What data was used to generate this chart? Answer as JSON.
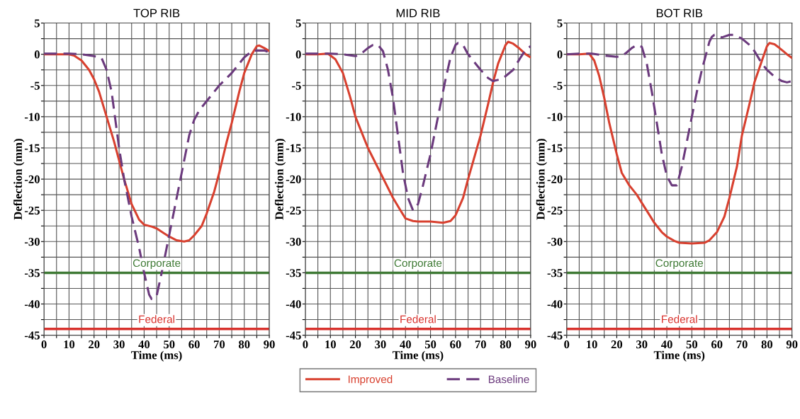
{
  "chart_data": [
    {
      "type": "line",
      "title": "TOP RIB",
      "xlabel": "Time (ms)",
      "ylabel": "Deflection (mm)",
      "xlim": [
        0,
        90
      ],
      "ylim": [
        -45,
        5
      ],
      "xticks": [
        0,
        {
          "value": 5,
          "label": null
        },
        10,
        {
          "value": 15,
          "label": null
        },
        20,
        {
          "value": 25,
          "label": null
        },
        30,
        {
          "value": 35,
          "label": null
        },
        40,
        {
          "value": 45,
          "label": null
        },
        50,
        {
          "value": 55,
          "label": null
        },
        60,
        {
          "value": 65,
          "label": null
        },
        70,
        {
          "value": 75,
          "label": null
        },
        80,
        {
          "value": 85,
          "label": null
        },
        90
      ],
      "yticks": [
        -45,
        {
          "value": -42.5,
          "label": null
        },
        -40,
        {
          "value": -37.5,
          "label": null
        },
        -35,
        {
          "value": -32.5,
          "label": null
        },
        -30,
        {
          "value": -27.5,
          "label": null
        },
        -25,
        {
          "value": -22.5,
          "label": null
        },
        -20,
        {
          "value": -17.5,
          "label": null
        },
        -15,
        {
          "value": -12.5,
          "label": null
        },
        -10,
        {
          "value": -7.5,
          "label": null
        },
        -5,
        {
          "value": -2.5,
          "label": null
        },
        0,
        {
          "value": 2.5,
          "label": null
        },
        5
      ],
      "grid": true,
      "marker": "none",
      "ref_lines": [
        {
          "axis": "y",
          "value": -35,
          "label": "Corporate",
          "color": "#3f7a35"
        },
        {
          "axis": "y",
          "value": -44,
          "label": "Federal",
          "color": "#d8322d"
        }
      ],
      "series": [
        {
          "color": "#d8402f",
          "line_style": "solid",
          "x": [
            0,
            5,
            10,
            12,
            15,
            18,
            20,
            22,
            25,
            28,
            30,
            32,
            35,
            38,
            40,
            43,
            45,
            48,
            50,
            53,
            56,
            58,
            60,
            63,
            65,
            68,
            70,
            73,
            75,
            78,
            80,
            83,
            85,
            86,
            88,
            90
          ],
          "values": [
            0,
            0,
            0,
            -0.2,
            -1,
            -2.5,
            -4,
            -6,
            -10,
            -14,
            -17,
            -20,
            -24,
            -26.5,
            -27.3,
            -27.6,
            -27.9,
            -28.7,
            -29.2,
            -29.8,
            -30,
            -29.8,
            -29,
            -27.5,
            -25.5,
            -22,
            -19,
            -14,
            -11,
            -6,
            -3,
            0,
            1.3,
            1.4,
            1,
            0.5
          ]
        },
        {
          "color": "#6b3a7d",
          "line_style": "dashed",
          "x": [
            0,
            5,
            10,
            15,
            20,
            23,
            25,
            27,
            28,
            30,
            32,
            35,
            38,
            40,
            42,
            43,
            45,
            47,
            50,
            52,
            55,
            58,
            60,
            62,
            65,
            70,
            75,
            80,
            83,
            85,
            88,
            90
          ],
          "values": [
            0.1,
            0.1,
            0.1,
            0,
            -0.3,
            -0.6,
            -2.5,
            -6,
            -9,
            -15,
            -20,
            -26,
            -31,
            -35,
            -38.5,
            -39.2,
            -38.7,
            -35,
            -29,
            -25,
            -19,
            -13,
            -10.5,
            -9,
            -7.5,
            -5,
            -3,
            -0.5,
            0.5,
            0.6,
            0.6,
            0.3
          ]
        }
      ]
    },
    {
      "type": "line",
      "title": "MID RIB",
      "xlabel": "Time (ms)",
      "ylabel": "Deflection (mm)",
      "xlim": [
        0,
        90
      ],
      "ylim": [
        -45,
        5
      ],
      "xticks": [
        0,
        {
          "value": 5,
          "label": null
        },
        10,
        {
          "value": 15,
          "label": null
        },
        20,
        {
          "value": 25,
          "label": null
        },
        30,
        {
          "value": 35,
          "label": null
        },
        40,
        {
          "value": 45,
          "label": null
        },
        50,
        {
          "value": 55,
          "label": null
        },
        60,
        {
          "value": 65,
          "label": null
        },
        70,
        {
          "value": 75,
          "label": null
        },
        80,
        {
          "value": 85,
          "label": null
        },
        90
      ],
      "yticks": [
        -45,
        {
          "value": -42.5,
          "label": null
        },
        -40,
        {
          "value": -37.5,
          "label": null
        },
        -35,
        {
          "value": -32.5,
          "label": null
        },
        -30,
        {
          "value": -27.5,
          "label": null
        },
        -25,
        {
          "value": -22.5,
          "label": null
        },
        -20,
        {
          "value": -17.5,
          "label": null
        },
        -15,
        {
          "value": -12.5,
          "label": null
        },
        -10,
        {
          "value": -7.5,
          "label": null
        },
        -5,
        {
          "value": -2.5,
          "label": null
        },
        0,
        {
          "value": 2.5,
          "label": null
        },
        5
      ],
      "grid": true,
      "marker": "none",
      "legend": "bottom",
      "ref_lines": [
        {
          "axis": "y",
          "value": -35,
          "label": "Corporate",
          "color": "#3f7a35"
        },
        {
          "axis": "y",
          "value": -44,
          "label": "Federal",
          "color": "#d8322d"
        }
      ],
      "series": [
        {
          "name": "Improved",
          "color": "#d8402f",
          "line_style": "solid",
          "x": [
            0,
            5,
            9,
            12,
            15,
            18,
            20,
            23,
            25,
            30,
            35,
            38,
            40,
            43,
            45,
            50,
            55,
            58,
            60,
            63,
            65,
            70,
            73,
            75,
            77,
            80,
            81,
            83,
            85,
            88,
            90
          ],
          "values": [
            0,
            0,
            0.1,
            -0.8,
            -3,
            -7,
            -10,
            -13,
            -15,
            -19,
            -23,
            -25,
            -26.3,
            -26.7,
            -26.8,
            -26.8,
            -27,
            -26.7,
            -25.8,
            -23,
            -20,
            -13,
            -8,
            -4.5,
            -1.5,
            1.5,
            2,
            1.7,
            1.1,
            0,
            -0.5
          ]
        },
        {
          "name": "Baseline",
          "color": "#6b3a7d",
          "line_style": "dashed",
          "x": [
            0,
            5,
            10,
            15,
            20,
            22,
            25,
            27,
            29,
            31,
            33,
            35,
            37,
            39,
            41,
            43,
            45,
            47,
            50,
            53,
            56,
            58,
            60,
            61,
            63,
            65,
            70,
            73,
            75,
            78,
            80,
            83,
            86,
            88,
            90
          ],
          "values": [
            0.1,
            0.1,
            0.1,
            0,
            -0.3,
            0,
            1,
            1.5,
            1.5,
            0.5,
            -2.5,
            -7,
            -13,
            -19,
            -23,
            -25,
            -24,
            -21,
            -16,
            -10,
            -4,
            -0.5,
            1.5,
            1.8,
            1.5,
            0,
            -2.5,
            -3.8,
            -4.3,
            -4,
            -3.5,
            -2.5,
            -0.5,
            0.7,
            1.3
          ]
        }
      ]
    },
    {
      "type": "line",
      "title": "BOT RIB",
      "xlabel": "Time (ms)",
      "ylabel": "Deflection (mm)",
      "xlim": [
        0,
        90
      ],
      "ylim": [
        -45,
        5
      ],
      "xticks": [
        0,
        {
          "value": 5,
          "label": null
        },
        10,
        {
          "value": 15,
          "label": null
        },
        20,
        {
          "value": 25,
          "label": null
        },
        30,
        {
          "value": 35,
          "label": null
        },
        40,
        {
          "value": 45,
          "label": null
        },
        50,
        {
          "value": 55,
          "label": null
        },
        60,
        {
          "value": 65,
          "label": null
        },
        70,
        {
          "value": 75,
          "label": null
        },
        80,
        {
          "value": 85,
          "label": null
        },
        90
      ],
      "yticks": [
        -45,
        {
          "value": -42.5,
          "label": null
        },
        -40,
        {
          "value": -37.5,
          "label": null
        },
        -35,
        {
          "value": -32.5,
          "label": null
        },
        -30,
        {
          "value": -27.5,
          "label": null
        },
        -25,
        {
          "value": -22.5,
          "label": null
        },
        -20,
        {
          "value": -17.5,
          "label": null
        },
        -15,
        {
          "value": -12.5,
          "label": null
        },
        -10,
        {
          "value": -7.5,
          "label": null
        },
        -5,
        {
          "value": -2.5,
          "label": null
        },
        0,
        {
          "value": 2.5,
          "label": null
        },
        5
      ],
      "grid": true,
      "marker": "none",
      "ref_lines": [
        {
          "axis": "y",
          "value": -35,
          "label": "Corporate",
          "color": "#3f7a35"
        },
        {
          "axis": "y",
          "value": -44,
          "label": "Federal",
          "color": "#d8322d"
        }
      ],
      "series": [
        {
          "color": "#d8402f",
          "line_style": "solid",
          "x": [
            0,
            5,
            9,
            11,
            13,
            15,
            17,
            20,
            22,
            25,
            28,
            30,
            33,
            35,
            38,
            40,
            43,
            45,
            50,
            55,
            57,
            60,
            63,
            65,
            68,
            70,
            73,
            75,
            78,
            80,
            81,
            83,
            85,
            88,
            90
          ],
          "values": [
            0,
            0,
            0.1,
            -1,
            -3.5,
            -7,
            -11,
            -16,
            -19,
            -21,
            -22.5,
            -23.8,
            -25.7,
            -27,
            -28.5,
            -29.2,
            -29.9,
            -30.2,
            -30.3,
            -30.2,
            -29.8,
            -28.5,
            -26,
            -23,
            -18,
            -13,
            -8,
            -4.5,
            -1,
            1.3,
            1.8,
            1.6,
            1,
            0,
            -0.6
          ]
        },
        {
          "color": "#6b3a7d",
          "line_style": "dashed",
          "x": [
            0,
            5,
            10,
            15,
            20,
            22,
            24,
            26,
            28,
            30,
            32,
            34,
            36,
            38,
            40,
            42,
            44,
            46,
            48,
            50,
            52,
            54,
            56,
            57,
            58,
            59,
            62,
            65,
            67,
            70,
            73,
            75,
            78,
            80,
            83,
            86,
            88,
            90
          ],
          "values": [
            0,
            0.1,
            0.1,
            -0.2,
            -0.4,
            -0.3,
            0.3,
            1,
            1.5,
            1.2,
            -1.5,
            -6,
            -11,
            -16,
            -19.5,
            -21,
            -21,
            -18,
            -14,
            -10,
            -6,
            -2.5,
            0.5,
            2,
            2.8,
            3.1,
            2.7,
            3.1,
            3.1,
            2.5,
            1.5,
            0.5,
            -1.5,
            -2.5,
            -3.6,
            -4.3,
            -4.5,
            -4.3
          ]
        }
      ]
    }
  ]
}
